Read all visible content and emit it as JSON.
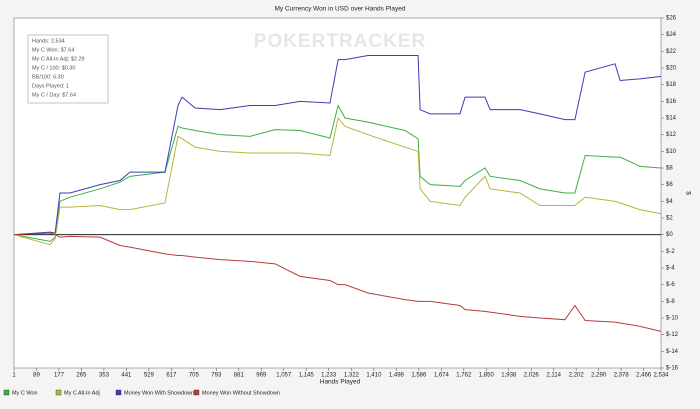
{
  "chart_data": {
    "type": "line",
    "title": "My Currency Won in USD over Hands Played",
    "watermark": "POKERTRACKER",
    "x_label": "Hands Played",
    "y_label": "$",
    "annotations": [
      "Hands: 2,534",
      "My C Won: $7.64",
      "My C All-In Adj: $2.29",
      "My C / 100: $0.30",
      "BB/100: 6.30",
      "Days Played: 1",
      "My C / Day: $7.64"
    ],
    "grid": false,
    "legend": "bottom-left",
    "x": [
      1,
      142,
      162,
      181,
      220,
      338,
      416,
      455,
      592,
      643,
      659,
      710,
      808,
      925,
      1023,
      1121,
      1238,
      1270,
      1297,
      1387,
      1532,
      1583,
      1591,
      1630,
      1747,
      1767,
      1845,
      1865,
      1982,
      2060,
      2158,
      2197,
      2237,
      2354,
      2374,
      2452,
      2534
    ],
    "series": [
      {
        "name": "My C Won",
        "color": "#3cb043",
        "values": [
          0,
          -0.8,
          -0.3,
          4,
          4.5,
          5.5,
          6.3,
          7,
          7.5,
          13,
          12.8,
          12.5,
          12,
          11.8,
          12.6,
          12.5,
          11.6,
          15.5,
          14,
          13.5,
          12.5,
          11.5,
          7,
          6,
          5.8,
          6.5,
          8,
          7,
          6.5,
          5.5,
          5,
          5,
          9.5,
          9.3,
          9.3,
          8.2,
          8
        ]
      },
      {
        "name": "My C All-In Adj",
        "color": "#b5b53a",
        "values": [
          0,
          -1.2,
          -0.5,
          3.3,
          3.3,
          3.5,
          3,
          3,
          3.8,
          11.8,
          11.5,
          10.5,
          10,
          9.8,
          9.8,
          9.8,
          9.5,
          14,
          13,
          12,
          10.5,
          10,
          5.5,
          4,
          3.5,
          4.5,
          7,
          5.5,
          5,
          3.5,
          3.5,
          3.5,
          4.5,
          4,
          3.8,
          3,
          2.5
        ]
      },
      {
        "name": "Money Won With Showdown",
        "color": "#3c3cb4",
        "values": [
          0,
          0.3,
          0.2,
          5,
          5,
          6,
          6.5,
          7.5,
          7.5,
          15.5,
          16.5,
          15.2,
          15,
          15.5,
          15.5,
          16,
          15.8,
          21,
          21,
          21.5,
          21.5,
          21.5,
          15,
          14.5,
          14.5,
          16.5,
          16.5,
          15,
          15,
          14.5,
          13.8,
          13.8,
          19.5,
          20.5,
          18.5,
          18.7,
          19
        ]
      },
      {
        "name": "Money Won Without Showdown",
        "color": "#b43c3c",
        "values": [
          0,
          0.2,
          0,
          -0.3,
          -0.2,
          -0.3,
          -1.3,
          -1.5,
          -2.3,
          -2.5,
          -2.5,
          -2.7,
          -3,
          -3.2,
          -3.5,
          -5,
          -5.5,
          -6,
          -6,
          -7,
          -7.8,
          -8,
          -8,
          -8,
          -8.5,
          -9,
          -9.2,
          -9.3,
          -9.8,
          -10,
          -10.2,
          -8.5,
          -10.3,
          -10.5,
          -10.6,
          -11,
          -11.6
        ]
      }
    ],
    "xlim": [
      1,
      2534
    ],
    "xticks": [
      1,
      89,
      177,
      265,
      353,
      441,
      529,
      617,
      705,
      793,
      881,
      969,
      {
        "value": 1057,
        "label": "1,057"
      },
      {
        "value": 1145,
        "label": "1,145"
      },
      {
        "value": 1233,
        "label": "1,233"
      },
      {
        "value": 1322,
        "label": "1,322"
      },
      {
        "value": 1410,
        "label": "1,410"
      },
      {
        "value": 1498,
        "label": "1,498"
      },
      {
        "value": 1586,
        "label": "1,586"
      },
      {
        "value": 1674,
        "label": "1,674"
      },
      {
        "value": 1762,
        "label": "1,762"
      },
      {
        "value": 1850,
        "label": "1,850"
      },
      {
        "value": 1938,
        "label": "1,938"
      },
      {
        "value": 2026,
        "label": "2,026"
      },
      {
        "value": 2114,
        "label": "2,114"
      },
      {
        "value": 2202,
        "label": "2,202"
      },
      {
        "value": 2290,
        "label": "2,290"
      },
      {
        "value": 2378,
        "label": "2,378"
      },
      {
        "value": 2466,
        "label": "2,466"
      },
      {
        "value": 2534,
        "label": "2,534"
      }
    ],
    "ylim": [
      -16,
      26
    ],
    "yticks": [
      {
        "value": 26,
        "label": "$26"
      },
      {
        "value": 24,
        "label": "$24"
      },
      {
        "value": 22,
        "label": "$22"
      },
      {
        "value": 20,
        "label": "$20"
      },
      {
        "value": 18,
        "label": "$18"
      },
      {
        "value": 16,
        "label": "$16"
      },
      {
        "value": 14,
        "label": "$14"
      },
      {
        "value": 12,
        "label": "$12"
      },
      {
        "value": 10,
        "label": "$10"
      },
      {
        "value": 8,
        "label": "$8"
      },
      {
        "value": 6,
        "label": "$6"
      },
      {
        "value": 4,
        "label": "$4"
      },
      {
        "value": 2,
        "label": "$2"
      },
      {
        "value": 0,
        "label": "$0"
      },
      {
        "value": -2,
        "label": "$-2"
      },
      {
        "value": -4,
        "label": "$-4"
      },
      {
        "value": -6,
        "label": "$-6"
      },
      {
        "value": -8,
        "label": "$-8"
      },
      {
        "value": -10,
        "label": "$-10"
      },
      {
        "value": -12,
        "label": "$-12"
      },
      {
        "value": -14,
        "label": "$-14"
      },
      {
        "value": -16,
        "label": "$-16"
      }
    ]
  }
}
